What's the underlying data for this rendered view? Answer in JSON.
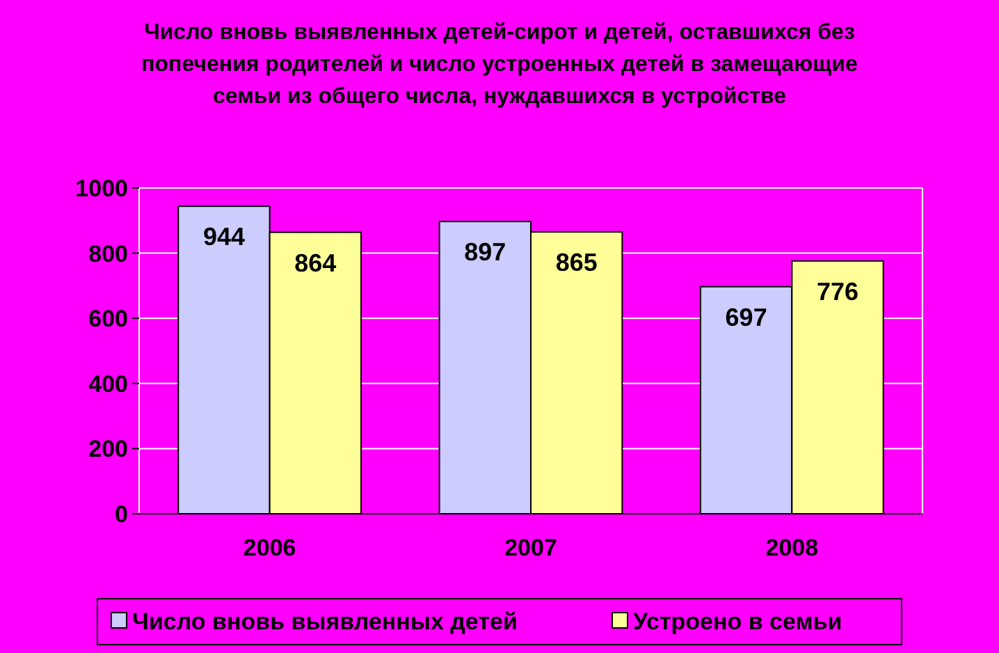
{
  "chart_data": {
    "type": "bar",
    "title": "Число вновь выявленных детей-сирот и детей, оставшихся без попечения родителей и число устроенных детей в замещающие семьи из общего числа, нуждавшихся в устройстве",
    "categories": [
      "2006",
      "2007",
      "2008"
    ],
    "series": [
      {
        "name": "Число вновь выявленных детей",
        "color": "#ccccff",
        "values": [
          944,
          897,
          697
        ]
      },
      {
        "name": "Устроено в семьи",
        "color": "#ffff99",
        "values": [
          864,
          865,
          776
        ]
      }
    ],
    "ylim": [
      0,
      1000
    ],
    "yticks": [
      0,
      200,
      400,
      600,
      800,
      1000
    ],
    "grid": "y",
    "legend": "bottom",
    "data_labels": true
  }
}
